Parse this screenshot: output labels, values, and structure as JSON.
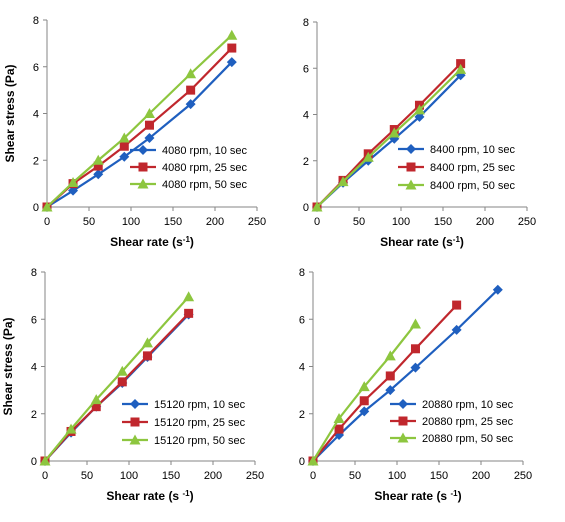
{
  "colors": {
    "10 sec": "#1F5FBF",
    "25 sec": "#C0272D",
    "50 sec": "#8DC63F"
  },
  "chart_data": [
    {
      "type": "line",
      "position": "top-left",
      "xlabel": "Shear rate (s-1)",
      "ylabel": "Shear stress (Pa)",
      "xlim": [
        0,
        250
      ],
      "ylim": [
        0,
        8
      ],
      "xticks": [
        0,
        50,
        100,
        150,
        200,
        250
      ],
      "yticks": [
        0,
        2,
        4,
        6,
        8
      ],
      "legend_placement": "center-right",
      "series": [
        {
          "name": "4080 rpm, 10 sec",
          "marker": "diamond",
          "color": "#1F5FBF",
          "x": [
            0,
            31,
            61,
            92,
            122,
            171,
            220
          ],
          "y": [
            0,
            0.7,
            1.4,
            2.15,
            2.95,
            4.4,
            6.2
          ]
        },
        {
          "name": "4080 rpm, 25 sec",
          "marker": "square",
          "color": "#C0272D",
          "x": [
            0,
            31,
            61,
            92,
            122,
            171,
            220
          ],
          "y": [
            0,
            1.0,
            1.75,
            2.6,
            3.5,
            5.0,
            6.8
          ]
        },
        {
          "name": "4080 rpm, 50 sec",
          "marker": "triangle",
          "color": "#8DC63F",
          "x": [
            0,
            31,
            61,
            92,
            122,
            171,
            220
          ],
          "y": [
            0,
            1.05,
            2.0,
            2.95,
            4.0,
            5.7,
            7.35
          ]
        }
      ]
    },
    {
      "type": "line",
      "position": "top-right",
      "xlabel": "Shear rate (s-1)",
      "ylabel": "",
      "xlim": [
        0,
        250
      ],
      "ylim": [
        0,
        8
      ],
      "xticks": [
        0,
        50,
        100,
        150,
        200,
        250
      ],
      "yticks": [
        0,
        2,
        4,
        6,
        8
      ],
      "legend_placement": "center-right",
      "series": [
        {
          "name": "8400 rpm, 10 sec",
          "marker": "diamond",
          "color": "#1F5FBF",
          "x": [
            0,
            31,
            61,
            92,
            122,
            171
          ],
          "y": [
            0,
            1.05,
            2.0,
            2.95,
            3.9,
            5.7
          ]
        },
        {
          "name": "8400 rpm, 25 sec",
          "marker": "square",
          "color": "#C0272D",
          "x": [
            0,
            31,
            61,
            92,
            122,
            171
          ],
          "y": [
            0,
            1.15,
            2.3,
            3.35,
            4.4,
            6.2
          ]
        },
        {
          "name": "8400 rpm, 50 sec",
          "marker": "triangle",
          "color": "#8DC63F",
          "x": [
            0,
            31,
            61,
            92,
            122,
            171
          ],
          "y": [
            0,
            1.1,
            2.15,
            3.2,
            4.2,
            5.95
          ]
        }
      ]
    },
    {
      "type": "line",
      "position": "bottom-left",
      "xlabel": "Shear rate (s -1)",
      "ylabel": "Shear stress (Pa)",
      "xlim": [
        0,
        250
      ],
      "ylim": [
        0,
        8
      ],
      "xticks": [
        0,
        50,
        100,
        150,
        200,
        250
      ],
      "yticks": [
        0,
        2,
        4,
        6,
        8
      ],
      "legend_placement": "bottom-right",
      "series": [
        {
          "name": "15120 rpm, 10 sec",
          "marker": "diamond",
          "color": "#1F5FBF",
          "x": [
            0,
            31,
            61,
            92,
            122,
            171
          ],
          "y": [
            0,
            1.2,
            2.3,
            3.3,
            4.4,
            6.2
          ]
        },
        {
          "name": "15120 rpm, 25 sec",
          "marker": "square",
          "color": "#C0272D",
          "x": [
            0,
            31,
            61,
            92,
            122,
            171
          ],
          "y": [
            0,
            1.25,
            2.3,
            3.35,
            4.45,
            6.25
          ]
        },
        {
          "name": "15120 rpm, 50 sec",
          "marker": "triangle",
          "color": "#8DC63F",
          "x": [
            0,
            31,
            61,
            92,
            122,
            171
          ],
          "y": [
            0,
            1.35,
            2.6,
            3.8,
            5.0,
            6.95
          ]
        }
      ]
    },
    {
      "type": "line",
      "position": "bottom-right",
      "xlabel": "Shear rate (s -1)",
      "ylabel": "",
      "xlim": [
        0,
        250
      ],
      "ylim": [
        0,
        8
      ],
      "xticks": [
        0,
        50,
        100,
        150,
        200,
        250
      ],
      "yticks": [
        0,
        2,
        4,
        6,
        8
      ],
      "legend_placement": "bottom-right",
      "series": [
        {
          "name": "20880 rpm, 10 sec",
          "marker": "diamond",
          "color": "#1F5FBF",
          "x": [
            0,
            31,
            61,
            92,
            122,
            171,
            220
          ],
          "y": [
            0,
            1.1,
            2.1,
            3.0,
            3.95,
            5.55,
            7.25
          ]
        },
        {
          "name": "20880 rpm, 25 sec",
          "marker": "square",
          "color": "#C0272D",
          "x": [
            0,
            31,
            61,
            92,
            122,
            171
          ],
          "y": [
            0,
            1.35,
            2.55,
            3.6,
            4.75,
            6.6
          ]
        },
        {
          "name": "20880 rpm, 50 sec",
          "marker": "triangle",
          "color": "#8DC63F",
          "x": [
            0,
            31,
            61,
            92,
            122
          ],
          "y": [
            0,
            1.8,
            3.15,
            4.45,
            5.8
          ]
        }
      ]
    }
  ]
}
